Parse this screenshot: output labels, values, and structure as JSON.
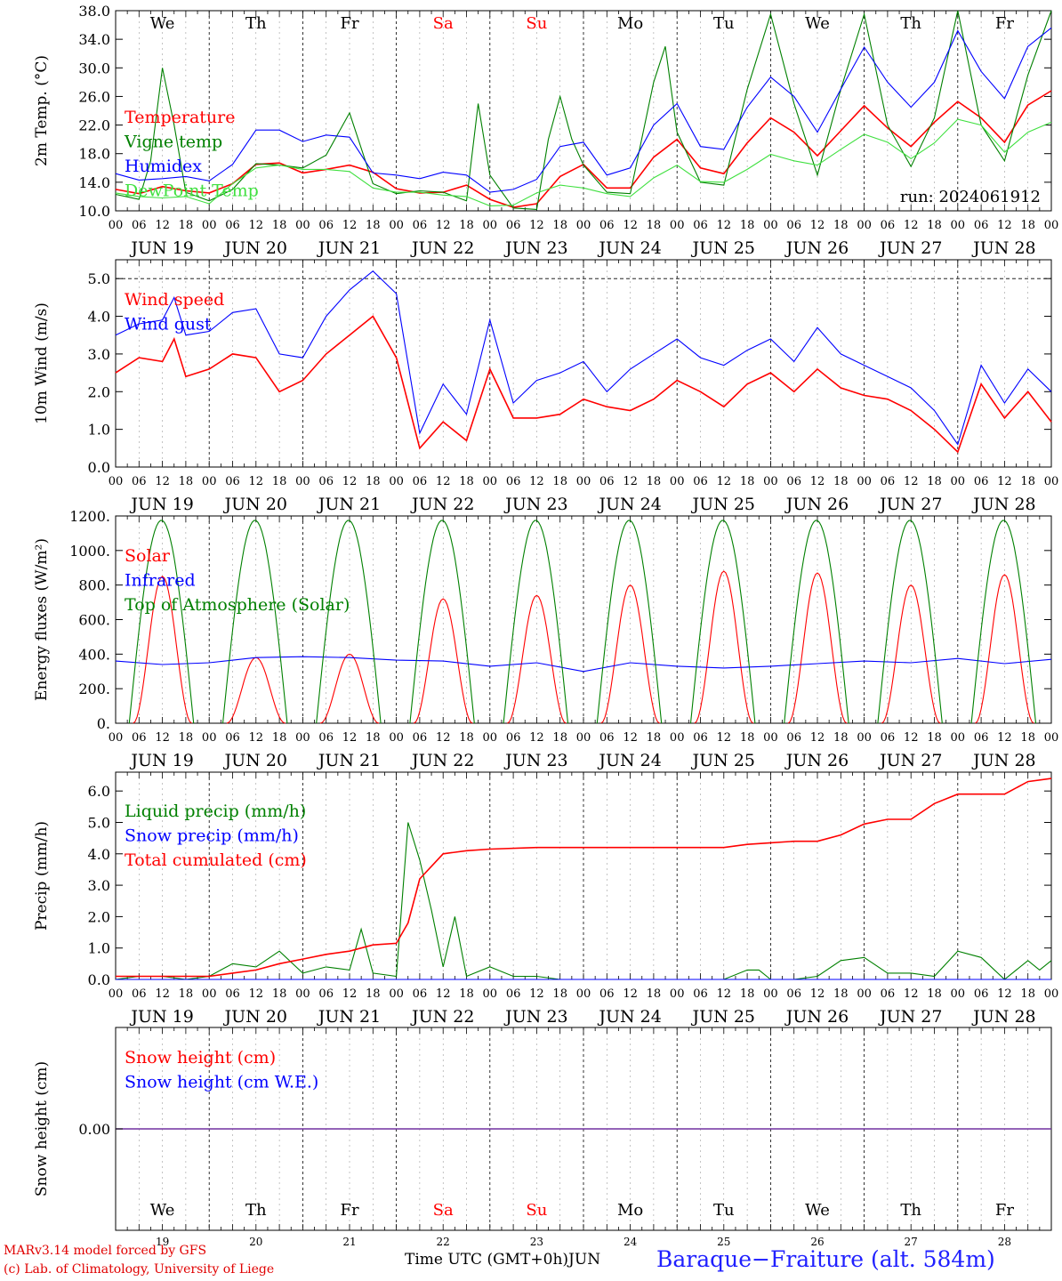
{
  "days": [
    "We",
    "Th",
    "Fr",
    "Sa",
    "Su",
    "Mo",
    "Tu",
    "We",
    "Th",
    "Fr"
  ],
  "weekend_days": [
    "Sa",
    "Su"
  ],
  "dates": [
    "JUN 19",
    "JUN 20",
    "JUN 21",
    "JUN 22",
    "JUN 23",
    "JUN 24",
    "JUN 25",
    "JUN 26",
    "JUN 27",
    "JUN 28"
  ],
  "day_numbers": [
    "19",
    "20",
    "21",
    "22",
    "23",
    "24",
    "25",
    "26",
    "27",
    "28"
  ],
  "hour_labels": [
    "00",
    "06",
    "12",
    "18"
  ],
  "final_hour_label": "00",
  "run_label": "run: 2024061912",
  "footer": {
    "model": "MARv3.14 model forced by GFS",
    "lab": "(c) Lab. of Climatology, University of Liege",
    "time_label": "Time UTC (GMT+0h)",
    "month": "JUN",
    "station": "Baraque−Fraiture (alt. 584m)"
  },
  "colors": {
    "red": "#ff0000",
    "green": "#008000",
    "blue": "#0000ff",
    "lightgreen": "#40e040",
    "purple": "#7030a0"
  },
  "chart_data": [
    {
      "id": "temp",
      "type": "line",
      "ylabel": "2m Temp. (°C)",
      "ylim": [
        10,
        38
      ],
      "yticks": [
        "10.0",
        "14.0",
        "18.0",
        "22.0",
        "26.0",
        "30.0",
        "34.0",
        "38.0"
      ],
      "ytick_values": [
        10,
        14,
        18,
        22,
        26,
        30,
        34,
        38
      ],
      "x_unit": "hours since JUN 19 00 UTC (10 days)",
      "show_days": true,
      "series": [
        {
          "name": "Temperature",
          "color": "red",
          "x": [
            0,
            6,
            12,
            18,
            24,
            30,
            36,
            42,
            48,
            54,
            60,
            66,
            72,
            78,
            84,
            90,
            96,
            102,
            108,
            114,
            120,
            126,
            132,
            138,
            144,
            150,
            156,
            162,
            168,
            174,
            180,
            186,
            192,
            198,
            204,
            210,
            216,
            222,
            228,
            234,
            240
          ],
          "y": [
            13.0,
            12.4,
            13.4,
            12.8,
            12.5,
            13.8,
            16.5,
            16.7,
            15.3,
            15.8,
            16.4,
            15.4,
            13.1,
            12.5,
            12.6,
            13.6,
            11.6,
            10.5,
            11.0,
            14.8,
            16.5,
            13.2,
            13.2,
            17.5,
            20.0,
            16.0,
            15.2,
            19.5,
            23.0,
            21.0,
            17.7,
            21.2,
            24.7,
            21.6,
            19.0,
            22.4,
            25.3,
            23.0,
            19.6,
            24.8,
            26.8
          ]
        },
        {
          "name": "Vigne temp",
          "color": "green",
          "x": [
            0,
            6,
            9,
            12,
            15,
            18,
            24,
            30,
            36,
            42,
            48,
            54,
            60,
            66,
            72,
            78,
            84,
            90,
            93,
            96,
            102,
            108,
            111,
            114,
            117,
            120,
            126,
            132,
            138,
            141,
            144,
            150,
            156,
            162,
            168,
            174,
            180,
            186,
            192,
            198,
            204,
            210,
            216,
            222,
            228,
            234,
            240
          ],
          "y": [
            12.3,
            11.6,
            17.0,
            30.0,
            22.0,
            12.6,
            11.4,
            13.0,
            16.6,
            16.4,
            16.0,
            17.8,
            23.7,
            13.8,
            12.4,
            12.8,
            12.6,
            11.4,
            25.0,
            15.0,
            10.4,
            10.2,
            20.0,
            26.0,
            20.0,
            16.4,
            12.6,
            12.4,
            28.0,
            33.0,
            21.0,
            14.0,
            13.6,
            27.0,
            37.5,
            25.0,
            15.0,
            27.0,
            37.5,
            22.0,
            16.2,
            23.0,
            38.0,
            22.0,
            17.0,
            29.0,
            38.0
          ]
        },
        {
          "name": "Humidex",
          "color": "blue",
          "x": [
            0,
            6,
            12,
            18,
            24,
            30,
            36,
            42,
            48,
            54,
            60,
            66,
            72,
            78,
            84,
            90,
            96,
            102,
            108,
            114,
            120,
            126,
            132,
            138,
            144,
            150,
            156,
            162,
            168,
            174,
            180,
            186,
            192,
            198,
            204,
            210,
            216,
            222,
            228,
            234,
            240
          ],
          "y": [
            15.2,
            14.3,
            14.5,
            14.8,
            14.2,
            16.5,
            21.3,
            21.3,
            19.7,
            20.6,
            20.3,
            15.3,
            15.0,
            14.5,
            15.4,
            15.0,
            12.6,
            13.0,
            14.4,
            19.0,
            19.6,
            15.0,
            16.0,
            22.0,
            25.0,
            19.0,
            18.6,
            24.5,
            28.7,
            26.0,
            21.0,
            27.0,
            32.9,
            28.0,
            24.5,
            28.0,
            35.2,
            29.5,
            25.7,
            33.0,
            35.6
          ]
        },
        {
          "name": "DewPoint Temp",
          "color": "lightgreen",
          "x": [
            0,
            6,
            12,
            18,
            24,
            30,
            36,
            42,
            48,
            54,
            60,
            66,
            72,
            78,
            84,
            90,
            96,
            102,
            108,
            114,
            120,
            126,
            132,
            138,
            144,
            150,
            156,
            162,
            168,
            174,
            180,
            186,
            192,
            198,
            204,
            210,
            216,
            222,
            228,
            234,
            240
          ],
          "y": [
            12.5,
            12.0,
            11.8,
            12.0,
            11.0,
            13.8,
            16.0,
            16.4,
            15.8,
            15.8,
            15.5,
            13.2,
            12.6,
            12.6,
            12.2,
            12.0,
            10.7,
            10.8,
            12.5,
            13.6,
            13.2,
            12.4,
            12.0,
            14.6,
            16.4,
            14.1,
            14.0,
            15.8,
            17.9,
            17.0,
            16.4,
            18.6,
            20.7,
            19.6,
            17.3,
            19.5,
            22.8,
            22.0,
            18.2,
            21.0,
            22.4
          ]
        }
      ]
    },
    {
      "id": "wind",
      "type": "line",
      "ylabel": "10m Wind (m/s)",
      "ylim": [
        0,
        5.5
      ],
      "yticks": [
        "0.0",
        "1.0",
        "2.0",
        "3.0",
        "4.0",
        "5.0"
      ],
      "ytick_values": [
        0,
        1,
        2,
        3,
        4,
        5
      ],
      "reference_line": 5.0,
      "series": [
        {
          "name": "Wind speed",
          "color": "red",
          "x": [
            0,
            6,
            12,
            15,
            18,
            24,
            30,
            36,
            42,
            48,
            54,
            60,
            66,
            72,
            78,
            84,
            90,
            96,
            102,
            108,
            114,
            120,
            126,
            132,
            138,
            144,
            150,
            156,
            162,
            168,
            174,
            180,
            186,
            192,
            198,
            204,
            210,
            216,
            222,
            228,
            234,
            240
          ],
          "y": [
            2.5,
            2.9,
            2.8,
            3.4,
            2.4,
            2.6,
            3.0,
            2.9,
            2.0,
            2.3,
            3.0,
            3.5,
            4.0,
            2.9,
            0.5,
            1.2,
            0.7,
            2.6,
            1.3,
            1.3,
            1.4,
            1.8,
            1.6,
            1.5,
            1.8,
            2.3,
            2.0,
            1.6,
            2.2,
            2.5,
            2.0,
            2.6,
            2.1,
            1.9,
            1.8,
            1.5,
            1.0,
            0.4,
            2.2,
            1.3,
            2.0,
            1.2
          ]
        },
        {
          "name": "Wind gust",
          "color": "blue",
          "x": [
            0,
            6,
            12,
            15,
            18,
            24,
            30,
            36,
            42,
            48,
            54,
            60,
            66,
            72,
            78,
            84,
            90,
            96,
            102,
            108,
            114,
            120,
            126,
            132,
            138,
            144,
            150,
            156,
            162,
            168,
            174,
            180,
            186,
            192,
            198,
            204,
            210,
            216,
            222,
            228,
            234,
            240
          ],
          "y": [
            3.5,
            3.8,
            3.9,
            4.5,
            3.5,
            3.6,
            4.1,
            4.2,
            3.0,
            2.9,
            4.0,
            4.7,
            5.2,
            4.6,
            0.9,
            2.2,
            1.4,
            3.9,
            1.7,
            2.3,
            2.5,
            2.8,
            2.0,
            2.6,
            3.0,
            3.4,
            2.9,
            2.7,
            3.1,
            3.4,
            2.8,
            3.7,
            3.0,
            2.7,
            2.4,
            2.1,
            1.5,
            0.6,
            2.7,
            1.7,
            2.6,
            2.0
          ]
        }
      ]
    },
    {
      "id": "energy",
      "type": "line",
      "ylabel": "Energy fluxes (W/m²)",
      "ylim": [
        0,
        1200
      ],
      "yticks": [
        "0.",
        "200.",
        "400.",
        "600.",
        "800.",
        "1000.",
        "1200."
      ],
      "ytick_values": [
        0,
        200,
        400,
        600,
        800,
        1000,
        1200
      ],
      "series": [
        {
          "name": "Solar",
          "color": "red",
          "daily_peaks": [
            850,
            380,
            400,
            720,
            740,
            800,
            880,
            870,
            800,
            860
          ]
        },
        {
          "name": "Infrared",
          "color": "blue",
          "x": [
            0,
            12,
            24,
            36,
            48,
            60,
            72,
            84,
            96,
            108,
            120,
            132,
            144,
            156,
            168,
            180,
            192,
            204,
            216,
            228,
            240
          ],
          "y": [
            360,
            340,
            350,
            380,
            385,
            380,
            365,
            360,
            330,
            350,
            300,
            350,
            330,
            320,
            330,
            345,
            360,
            350,
            375,
            345,
            370
          ]
        },
        {
          "name": "Top of Atmosphere (Solar)",
          "color": "green",
          "daily_peak": 1175,
          "sunrise_hour": 3.5,
          "sunset_hour": 20.0
        }
      ]
    },
    {
      "id": "precip",
      "type": "line",
      "ylabel": "Precip (mm/h)",
      "ylim": [
        0,
        6.6
      ],
      "yticks": [
        "0.0",
        "1.0",
        "2.0",
        "3.0",
        "4.0",
        "5.0",
        "6.0"
      ],
      "ytick_values": [
        0,
        1,
        2,
        3,
        4,
        5,
        6
      ],
      "series": [
        {
          "name": "Liquid precip (mm/h)",
          "color": "green",
          "x": [
            0,
            6,
            12,
            18,
            24,
            30,
            36,
            42,
            48,
            54,
            60,
            63,
            66,
            72,
            75,
            78,
            81,
            84,
            87,
            90,
            96,
            102,
            108,
            114,
            120,
            132,
            144,
            156,
            162,
            165,
            168,
            174,
            180,
            186,
            192,
            198,
            204,
            210,
            216,
            222,
            228,
            234,
            237,
            240
          ],
          "y": [
            0,
            0.1,
            0.1,
            0,
            0.1,
            0.5,
            0.4,
            0.9,
            0.2,
            0.4,
            0.3,
            1.6,
            0.2,
            0.1,
            5.0,
            3.8,
            2.2,
            0.4,
            2.0,
            0.1,
            0.4,
            0.1,
            0.1,
            0,
            0,
            0,
            0,
            0,
            0.3,
            0.3,
            0,
            0,
            0.1,
            0.6,
            0.7,
            0.2,
            0.2,
            0.1,
            0.9,
            0.7,
            0,
            0.6,
            0.3,
            0.6
          ]
        },
        {
          "name": "Snow precip (mm/h)",
          "color": "blue",
          "x": [
            0,
            240
          ],
          "y": [
            0,
            0
          ]
        },
        {
          "name": "Total cumulated (cm)",
          "color": "red",
          "x": [
            0,
            24,
            30,
            36,
            42,
            48,
            54,
            60,
            66,
            72,
            75,
            78,
            84,
            90,
            96,
            108,
            120,
            132,
            144,
            156,
            162,
            168,
            174,
            180,
            186,
            192,
            198,
            204,
            210,
            216,
            222,
            228,
            234,
            240
          ],
          "y": [
            0.1,
            0.1,
            0.2,
            0.3,
            0.5,
            0.65,
            0.8,
            0.9,
            1.1,
            1.15,
            1.8,
            3.2,
            4.0,
            4.1,
            4.15,
            4.2,
            4.2,
            4.2,
            4.2,
            4.2,
            4.3,
            4.35,
            4.4,
            4.4,
            4.6,
            4.95,
            5.1,
            5.1,
            5.6,
            5.9,
            5.9,
            5.9,
            6.3,
            6.4
          ]
        }
      ]
    },
    {
      "id": "snow",
      "type": "line",
      "ylabel": "Snow height (cm)",
      "yticks": [
        "0.00"
      ],
      "series": [
        {
          "name": "Snow height (cm)",
          "color": "red",
          "x": [
            0,
            240
          ],
          "y": [
            0,
            0
          ]
        },
        {
          "name": "Snow height (cm W.E.)",
          "color": "blue",
          "x": [
            0,
            240
          ],
          "y": [
            0,
            0
          ]
        }
      ]
    }
  ]
}
